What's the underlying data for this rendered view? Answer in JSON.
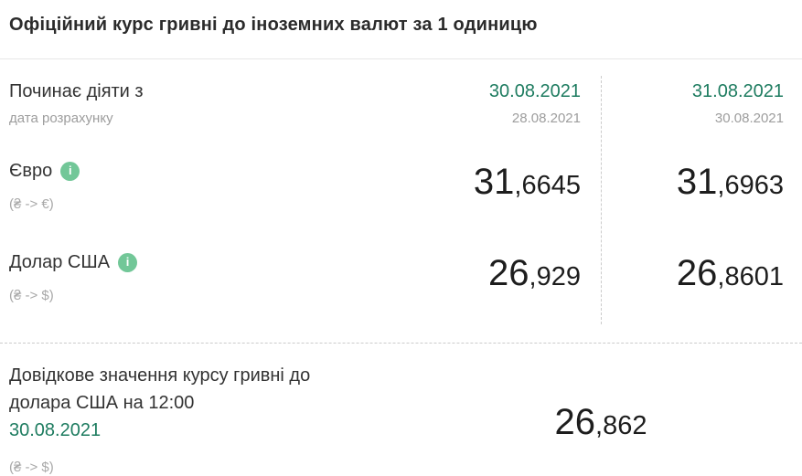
{
  "title": "Офіційний курс гривні до іноземних валют за 1 одиницю",
  "colors": {
    "accent_green": "#1e7c60",
    "info_icon_green": "#72c798"
  },
  "icons": {
    "info_glyph": "i"
  },
  "table": {
    "header": {
      "label": "Починає діяти з",
      "sublabel": "дата розрахунку",
      "columns": [
        {
          "effective_date": "30.08.2021",
          "calc_date": "28.08.2021"
        },
        {
          "effective_date": "31.08.2021",
          "calc_date": "30.08.2021"
        }
      ]
    },
    "rows": [
      {
        "currency": "Євро",
        "pair": "(₴ -> €)",
        "values": [
          {
            "int": "31",
            "frac": ",6645"
          },
          {
            "int": "31",
            "frac": ",6963"
          }
        ]
      },
      {
        "currency": "Долар США",
        "pair": "(₴ -> $)",
        "values": [
          {
            "int": "26",
            "frac": ",929"
          },
          {
            "int": "26",
            "frac": ",8601"
          }
        ]
      }
    ]
  },
  "reference": {
    "label": "Довідкове значення курсу гривні до долара США на 12:00",
    "date": "30.08.2021",
    "pair": "(₴ -> $)",
    "value": {
      "int": "26",
      "frac": ",862"
    }
  }
}
